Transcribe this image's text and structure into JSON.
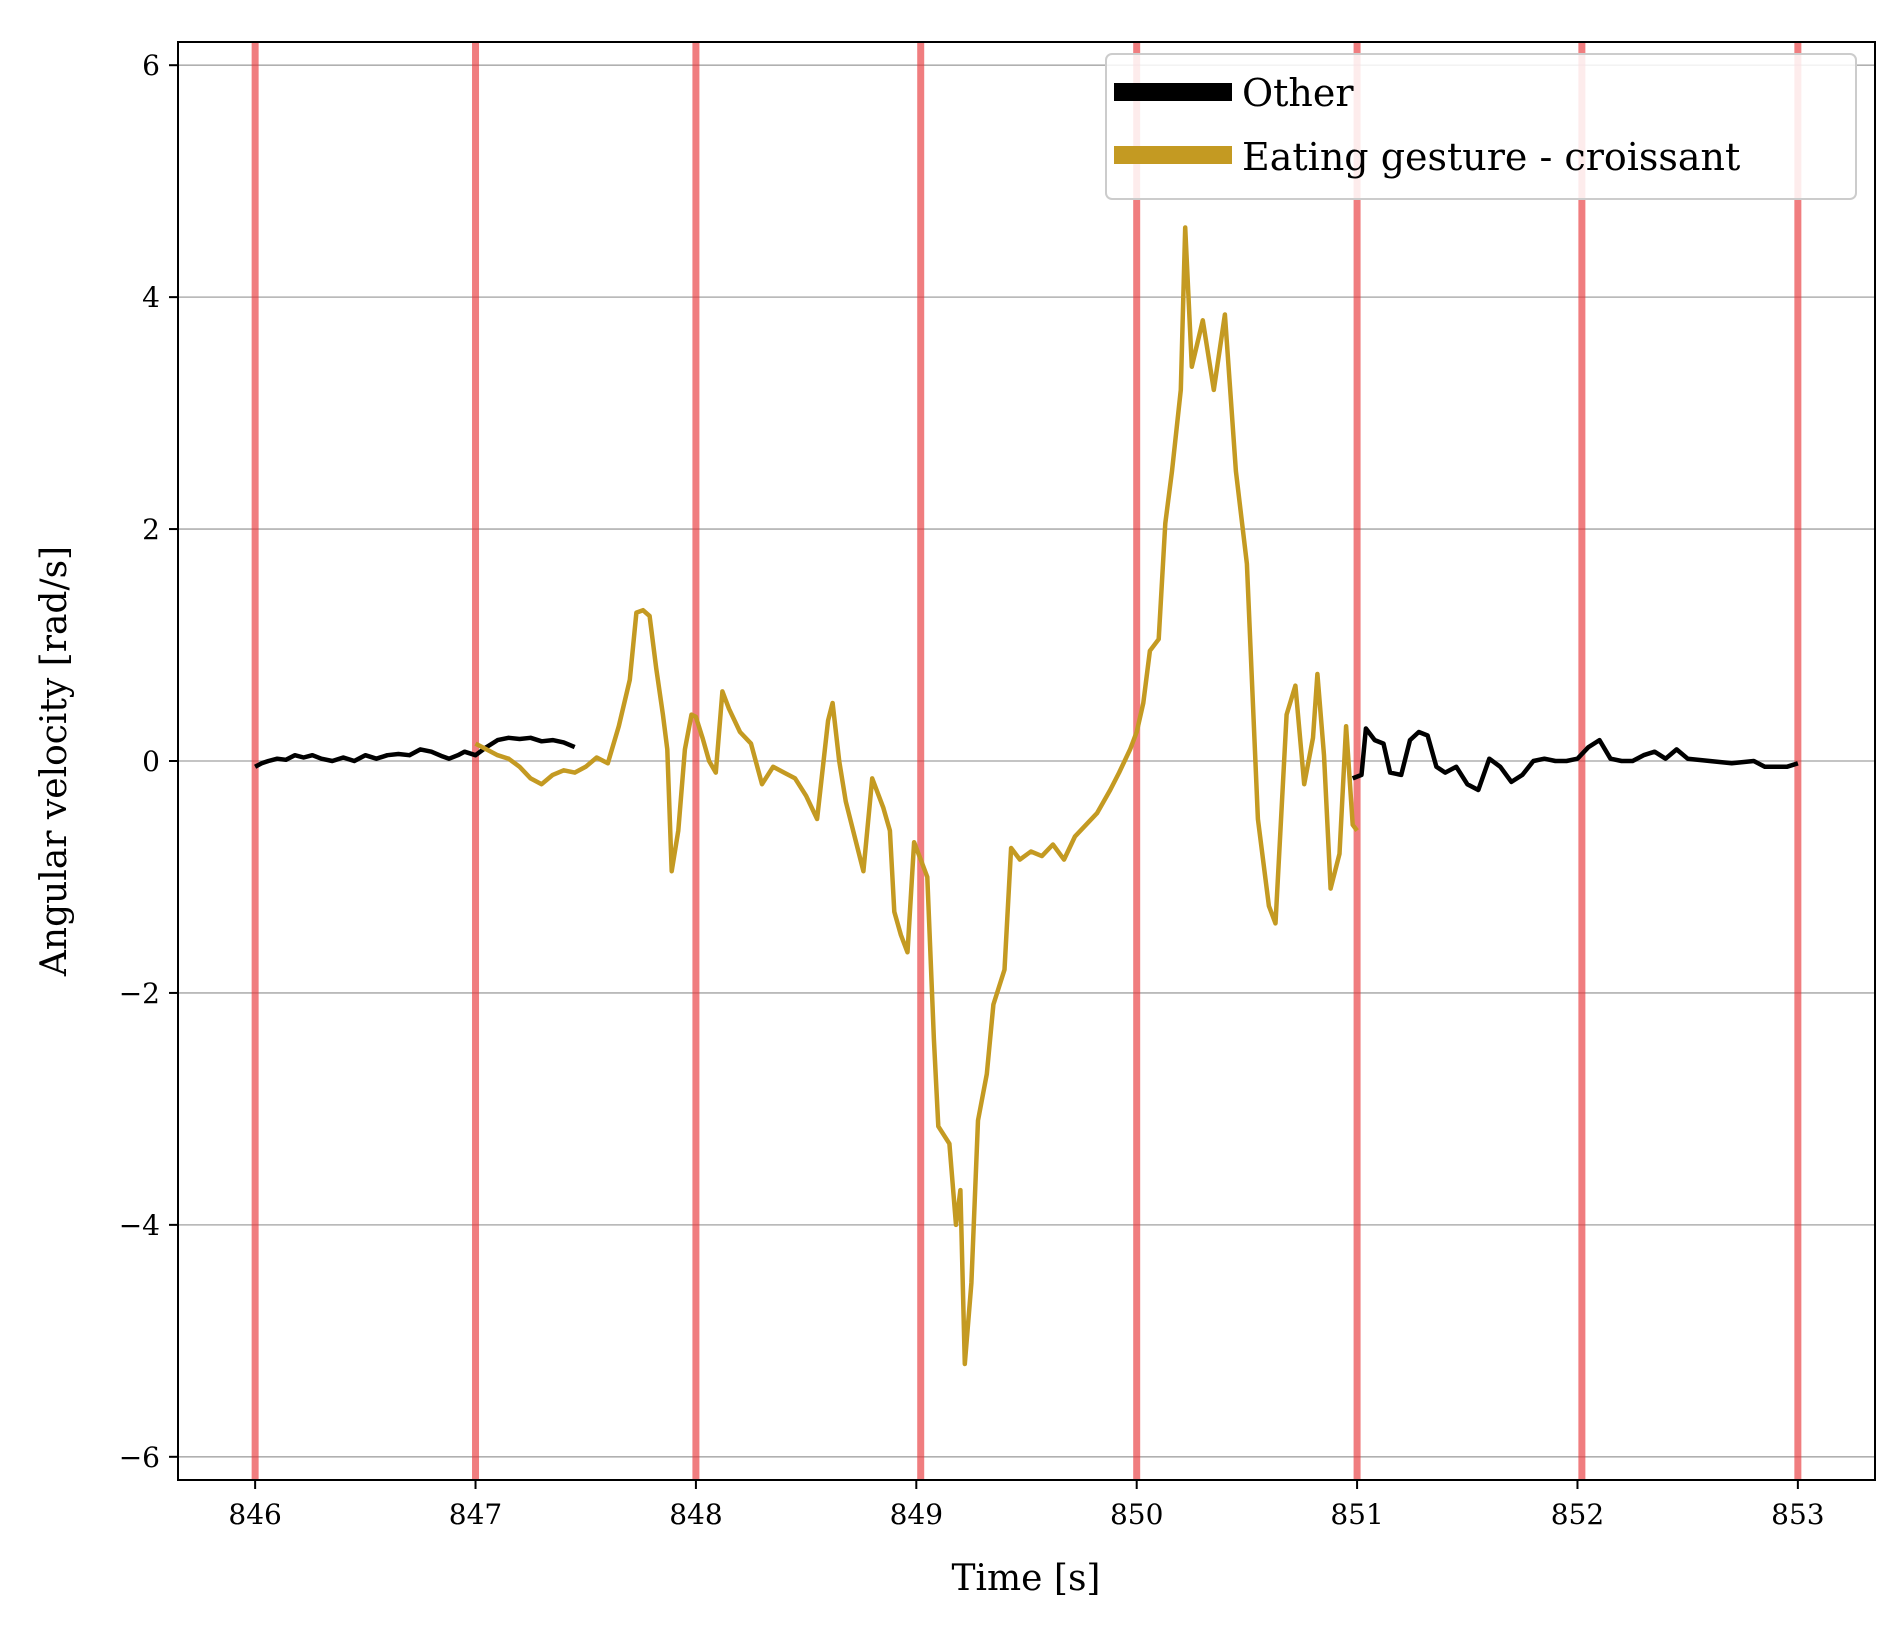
{
  "chart_data": {
    "type": "line",
    "title": "",
    "xlabel": "Time [s]",
    "ylabel": "Angular velocity [rad/s]",
    "xlim": [
      845.65,
      853.35
    ],
    "ylim": [
      -6.2,
      6.2
    ],
    "x_ticks": [
      846,
      847,
      848,
      849,
      850,
      851,
      852,
      853
    ],
    "x_tick_labels": [
      "846",
      "847",
      "848",
      "849",
      "850",
      "851",
      "852",
      "853"
    ],
    "y_ticks": [
      6,
      4,
      2,
      0,
      -2,
      -4,
      -6
    ],
    "y_tick_labels": [
      "6",
      "4",
      "2",
      "0",
      "−2",
      "−4",
      "−6"
    ],
    "grid": "horizontal",
    "legend_position": "top-right",
    "segment_boundaries": [
      846,
      847,
      848,
      849.02,
      850,
      851,
      852.02,
      853
    ],
    "boundary_color": "#e8383a",
    "series": [
      {
        "name": "Other",
        "color": "#000000",
        "points": [
          [
            846.0,
            -0.05
          ],
          [
            846.03,
            -0.02
          ],
          [
            846.06,
            0.0
          ],
          [
            846.1,
            0.02
          ],
          [
            846.14,
            0.01
          ],
          [
            846.18,
            0.05
          ],
          [
            846.22,
            0.03
          ],
          [
            846.26,
            0.05
          ],
          [
            846.3,
            0.02
          ],
          [
            846.35,
            0.0
          ],
          [
            846.4,
            0.03
          ],
          [
            846.45,
            0.0
          ],
          [
            846.5,
            0.05
          ],
          [
            846.55,
            0.02
          ],
          [
            846.6,
            0.05
          ],
          [
            846.65,
            0.06
          ],
          [
            846.7,
            0.05
          ],
          [
            846.75,
            0.1
          ],
          [
            846.8,
            0.08
          ],
          [
            846.85,
            0.04
          ],
          [
            846.88,
            0.02
          ],
          [
            846.92,
            0.05
          ],
          [
            846.95,
            0.08
          ],
          [
            847.0,
            0.05
          ],
          [
            847.05,
            0.12
          ],
          [
            847.1,
            0.18
          ],
          [
            847.15,
            0.2
          ],
          [
            847.2,
            0.19
          ],
          [
            847.25,
            0.2
          ],
          [
            847.3,
            0.17
          ],
          [
            847.35,
            0.18
          ],
          [
            847.4,
            0.16
          ],
          [
            847.45,
            0.12
          ]
        ]
      },
      {
        "name": "Eating gesture - croissant",
        "color": "#c49a22",
        "points": [
          [
            847.0,
            0.15
          ],
          [
            847.05,
            0.1
          ],
          [
            847.1,
            0.05
          ],
          [
            847.15,
            0.02
          ],
          [
            847.2,
            -0.05
          ],
          [
            847.25,
            -0.15
          ],
          [
            847.3,
            -0.2
          ],
          [
            847.35,
            -0.12
          ],
          [
            847.4,
            -0.08
          ],
          [
            847.45,
            -0.1
          ],
          [
            847.5,
            -0.05
          ],
          [
            847.55,
            0.03
          ],
          [
            847.6,
            -0.02
          ],
          [
            847.65,
            0.3
          ],
          [
            847.7,
            0.7
          ],
          [
            847.73,
            1.28
          ],
          [
            847.76,
            1.3
          ],
          [
            847.79,
            1.25
          ],
          [
            847.82,
            0.8
          ],
          [
            847.85,
            0.4
          ],
          [
            847.87,
            0.1
          ],
          [
            847.89,
            -0.95
          ],
          [
            847.92,
            -0.6
          ],
          [
            847.95,
            0.1
          ],
          [
            847.98,
            0.4
          ],
          [
            848.0,
            0.38
          ],
          [
            848.03,
            0.2
          ],
          [
            848.06,
            0.0
          ],
          [
            848.09,
            -0.1
          ],
          [
            848.12,
            0.6
          ],
          [
            848.15,
            0.45
          ],
          [
            848.2,
            0.25
          ],
          [
            848.25,
            0.15
          ],
          [
            848.3,
            -0.2
          ],
          [
            848.35,
            -0.05
          ],
          [
            848.4,
            -0.1
          ],
          [
            848.45,
            -0.15
          ],
          [
            848.5,
            -0.3
          ],
          [
            848.55,
            -0.5
          ],
          [
            848.6,
            0.35
          ],
          [
            848.62,
            0.5
          ],
          [
            848.65,
            0.0
          ],
          [
            848.68,
            -0.35
          ],
          [
            848.72,
            -0.65
          ],
          [
            848.76,
            -0.95
          ],
          [
            848.8,
            -0.15
          ],
          [
            848.85,
            -0.4
          ],
          [
            848.88,
            -0.6
          ],
          [
            848.9,
            -1.3
          ],
          [
            848.93,
            -1.5
          ],
          [
            848.96,
            -1.65
          ],
          [
            848.99,
            -0.7
          ],
          [
            849.02,
            -0.85
          ],
          [
            849.05,
            -1.0
          ],
          [
            849.08,
            -2.4
          ],
          [
            849.1,
            -3.15
          ],
          [
            849.15,
            -3.3
          ],
          [
            849.18,
            -4.0
          ],
          [
            849.2,
            -3.7
          ],
          [
            849.22,
            -5.2
          ],
          [
            849.25,
            -4.5
          ],
          [
            849.28,
            -3.1
          ],
          [
            849.32,
            -2.7
          ],
          [
            849.35,
            -2.1
          ],
          [
            849.4,
            -1.8
          ],
          [
            849.43,
            -0.75
          ],
          [
            849.47,
            -0.85
          ],
          [
            849.52,
            -0.78
          ],
          [
            849.57,
            -0.82
          ],
          [
            849.62,
            -0.72
          ],
          [
            849.67,
            -0.85
          ],
          [
            849.72,
            -0.65
          ],
          [
            849.77,
            -0.55
          ],
          [
            849.82,
            -0.45
          ],
          [
            849.88,
            -0.25
          ],
          [
            849.92,
            -0.1
          ],
          [
            849.97,
            0.1
          ],
          [
            850.0,
            0.25
          ],
          [
            850.03,
            0.5
          ],
          [
            850.06,
            0.95
          ],
          [
            850.1,
            1.05
          ],
          [
            850.13,
            2.05
          ],
          [
            850.16,
            2.5
          ],
          [
            850.2,
            3.2
          ],
          [
            850.22,
            4.6
          ],
          [
            850.25,
            3.4
          ],
          [
            850.3,
            3.8
          ],
          [
            850.35,
            3.2
          ],
          [
            850.4,
            3.85
          ],
          [
            850.45,
            2.5
          ],
          [
            850.5,
            1.7
          ],
          [
            850.55,
            -0.5
          ],
          [
            850.6,
            -1.25
          ],
          [
            850.63,
            -1.4
          ],
          [
            850.68,
            0.4
          ],
          [
            850.72,
            0.65
          ],
          [
            850.76,
            -0.2
          ],
          [
            850.8,
            0.2
          ],
          [
            850.82,
            0.75
          ],
          [
            850.85,
            0.05
          ],
          [
            850.88,
            -1.1
          ],
          [
            850.92,
            -0.8
          ],
          [
            850.95,
            0.3
          ],
          [
            850.98,
            -0.55
          ],
          [
            851.0,
            -0.6
          ]
        ]
      },
      {
        "name": "Other",
        "color": "#000000",
        "points": [
          [
            850.98,
            -0.15
          ],
          [
            851.02,
            -0.12
          ],
          [
            851.04,
            0.28
          ],
          [
            851.08,
            0.18
          ],
          [
            851.12,
            0.15
          ],
          [
            851.15,
            -0.1
          ],
          [
            851.2,
            -0.12
          ],
          [
            851.24,
            0.18
          ],
          [
            851.28,
            0.25
          ],
          [
            851.32,
            0.22
          ],
          [
            851.36,
            -0.05
          ],
          [
            851.4,
            -0.1
          ],
          [
            851.45,
            -0.05
          ],
          [
            851.5,
            -0.2
          ],
          [
            851.55,
            -0.25
          ],
          [
            851.6,
            0.02
          ],
          [
            851.65,
            -0.05
          ],
          [
            851.7,
            -0.18
          ],
          [
            851.75,
            -0.12
          ],
          [
            851.8,
            0.0
          ],
          [
            851.85,
            0.02
          ],
          [
            851.9,
            0.0
          ],
          [
            851.95,
            0.0
          ],
          [
            852.0,
            0.02
          ],
          [
            852.05,
            0.12
          ],
          [
            852.1,
            0.18
          ],
          [
            852.15,
            0.02
          ],
          [
            852.2,
            0.0
          ],
          [
            852.25,
            0.0
          ],
          [
            852.3,
            0.05
          ],
          [
            852.35,
            0.08
          ],
          [
            852.4,
            0.02
          ],
          [
            852.45,
            0.1
          ],
          [
            852.5,
            0.02
          ],
          [
            852.6,
            0.0
          ],
          [
            852.7,
            -0.02
          ],
          [
            852.8,
            0.0
          ],
          [
            852.85,
            -0.05
          ],
          [
            852.95,
            -0.05
          ],
          [
            853.0,
            -0.02
          ]
        ]
      }
    ]
  },
  "legend": {
    "items": [
      {
        "label": "Other",
        "color": "#000000"
      },
      {
        "label": "Eating gesture - croissant",
        "color": "#c49a22"
      }
    ]
  }
}
